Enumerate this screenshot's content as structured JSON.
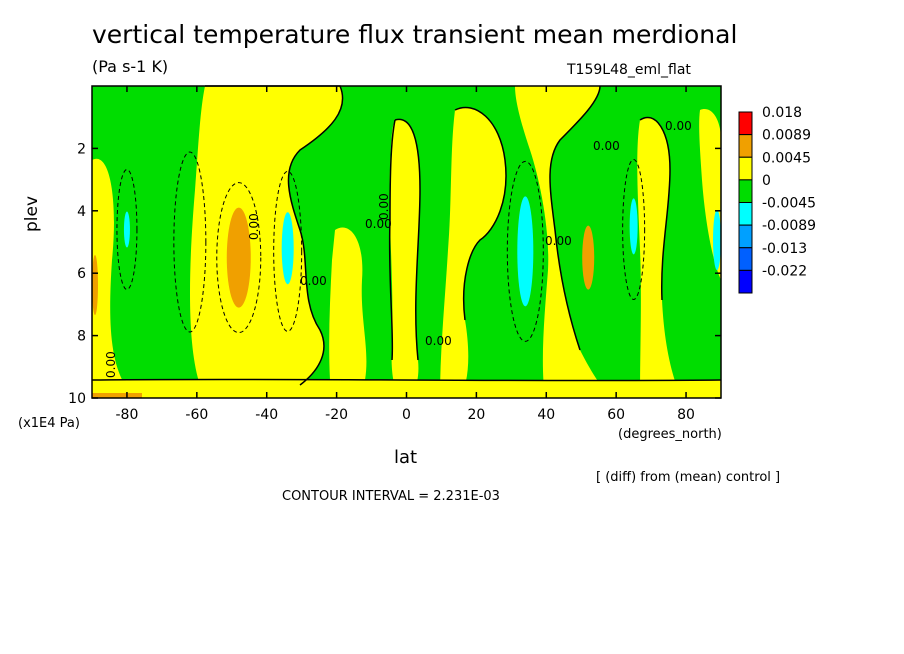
{
  "header": {
    "title": "vertical temperature flux transient mean merdional",
    "units": "(Pa s-1 K)",
    "run": "T159L48_eml_flat"
  },
  "footer": {
    "note": "[ (diff) from (mean) control ]",
    "contour_interval": "CONTOUR INTERVAL = 2.231E-03"
  },
  "chart_data": {
    "type": "heatmap",
    "title": "vertical temperature flux transient mean merdional",
    "xlabel": "lat",
    "xlabel_units": "(degrees_north)",
    "ylabel": "plev",
    "ylabel_units": "(x1E4 Pa)",
    "x_ticks": [
      -80,
      -60,
      -40,
      -20,
      0,
      20,
      40,
      60,
      80
    ],
    "x_tick_labels": [
      "-80",
      "-60",
      "-40",
      "-20",
      "0",
      "20",
      "40",
      "60",
      "80"
    ],
    "y_ticks": [
      2,
      4,
      6,
      8,
      10
    ],
    "y_tick_labels": [
      "2",
      "4",
      "6",
      "8",
      "10"
    ],
    "xlim": [
      -90,
      90
    ],
    "ylim": [
      10,
      0
    ],
    "y_inverted": true,
    "legend": {
      "position": "right",
      "levels": [
        "0.018",
        "0.0089",
        "0.0045",
        "0",
        "-0.0045",
        "-0.0089",
        "-0.013",
        "-0.022"
      ],
      "colors": [
        "#ff0000",
        "#f0a000",
        "#ffff00",
        "#00dd00",
        "#00ffff",
        "#00a0ff",
        "#0060ff",
        "#0000ff"
      ]
    },
    "contour_labels": [
      "0.00",
      "0.00",
      "0.00",
      "0.00",
      "0.00",
      "0.00",
      "0.00",
      "0.00",
      "0.00"
    ],
    "features": [
      {
        "lat": -48,
        "plev": 5.5,
        "value": 0.0067
      },
      {
        "lat": 52,
        "plev": 5.5,
        "value": 0.0067
      },
      {
        "lat": -34,
        "plev": 5.5,
        "value": -0.0067
      },
      {
        "lat": 34,
        "plev": 5.5,
        "value": -0.0067
      },
      {
        "lat": 65,
        "plev": 4.5,
        "value": -0.0067
      },
      {
        "lat": -80,
        "plev": 4.5,
        "value": -0.0067
      },
      {
        "lat": 0,
        "plev": 3.5,
        "value": 0.0023
      },
      {
        "lat": -20,
        "plev": 6.5,
        "value": 0.0023
      },
      {
        "lat": 15,
        "plev": 6.5,
        "value": 0.0023
      }
    ]
  }
}
